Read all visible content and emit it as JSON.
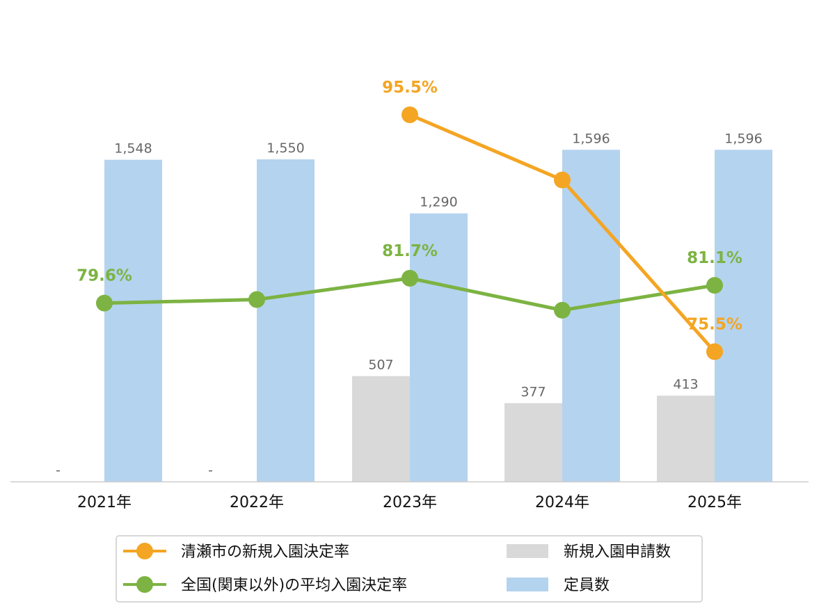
{
  "chart_data": {
    "type": "bar",
    "categories": [
      "2021年",
      "2022年",
      "2023年",
      "2024年",
      "2025年"
    ],
    "series": [
      {
        "name": "新規入園申請数",
        "kind": "bar",
        "color": "#d9d9d9",
        "values": [
          null,
          null,
          507,
          377,
          413
        ],
        "labels": [
          "-",
          "-",
          "507",
          "377",
          "413"
        ]
      },
      {
        "name": "定員数",
        "kind": "bar",
        "color": "#b4d3ef",
        "values": [
          1548,
          1550,
          1290,
          1596,
          1596
        ],
        "labels": [
          "1,548",
          "1,550",
          "1,290",
          "1,596",
          "1,596"
        ]
      },
      {
        "name": "清瀬市の新規入園決定率",
        "kind": "line",
        "color": "#f4a523",
        "values": [
          null,
          null,
          95.5,
          90.0,
          75.5
        ],
        "labels": [
          "",
          "",
          "95.5%",
          "",
          "75.5%"
        ]
      },
      {
        "name": "全国(関東以外)の平均入園決定率",
        "kind": "line",
        "color": "#7cb342",
        "values": [
          79.6,
          79.9,
          81.7,
          79.0,
          81.1
        ],
        "labels": [
          "79.6%",
          "",
          "81.7%",
          "",
          "81.1%"
        ]
      }
    ],
    "legend_position": "bottom",
    "grid": false,
    "ylim_bars": [
      0,
      1800
    ],
    "ylim_rates": [
      65,
      100
    ]
  }
}
